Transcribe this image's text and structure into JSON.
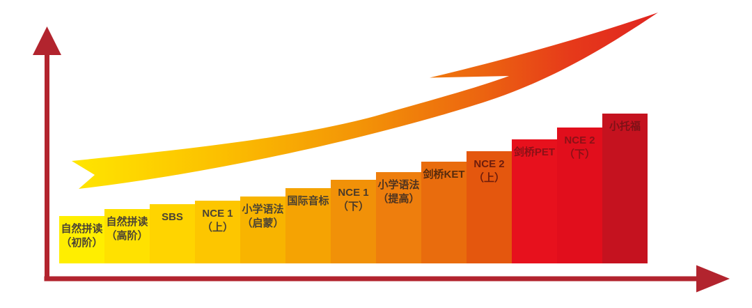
{
  "chart_data": {
    "type": "bar",
    "title": "",
    "xlabel": "",
    "ylabel": "",
    "legend": "none",
    "grid": false,
    "categories": [
      "自然拼读（初阶）",
      "自然拼读（高阶）",
      "SBS",
      "NCE 1（上）",
      "小学语法（启蒙）",
      "国际音标",
      "NCE 1（下）",
      "小学语法（提高）",
      "剑桥KET",
      "NCE 2（上）",
      "剑桥PET",
      "NCE 2（下）",
      "小托福"
    ],
    "values": [
      68,
      78,
      85,
      90,
      96,
      108,
      120,
      131,
      146,
      161,
      178,
      195,
      215
    ],
    "value_note": "no numeric axis in source; values are rendered bar heights (px), ascending ladder",
    "bars": [
      {
        "label": "自然拼读（初阶）",
        "lines": [
          "自然拼读",
          "（初阶）"
        ],
        "color": "#ffee00",
        "text_color": "#4b4334"
      },
      {
        "label": "自然拼读（高阶）",
        "lines": [
          "自然拼读",
          "（高阶）"
        ],
        "color": "#ffe100",
        "text_color": "#4b4334"
      },
      {
        "label": "SBS",
        "lines": [
          "SBS"
        ],
        "color": "#ffd400",
        "text_color": "#4b4334"
      },
      {
        "label": "NCE 1（上）",
        "lines": [
          "NCE 1",
          "（上）"
        ],
        "color": "#fdc600",
        "text_color": "#4b4334"
      },
      {
        "label": "小学语法（启蒙）",
        "lines": [
          "小学语法",
          "（启蒙）"
        ],
        "color": "#f8b400",
        "text_color": "#4b4334"
      },
      {
        "label": "国际音标",
        "lines": [
          "国际音标"
        ],
        "color": "#f5a303",
        "text_color": "#4b4030"
      },
      {
        "label": "NCE 1（下）",
        "lines": [
          "NCE 1",
          "（下）"
        ],
        "color": "#f19108",
        "text_color": "#4b3a28"
      },
      {
        "label": "小学语法（提高）",
        "lines": [
          "小学语法",
          "（提高）"
        ],
        "color": "#ee7e0d",
        "text_color": "#4d3320"
      },
      {
        "label": "剑桥KET",
        "lines": [
          "剑桥KET"
        ],
        "color": "#e96c0d",
        "text_color": "#572b0d"
      },
      {
        "label": "NCE 2（上）",
        "lines": [
          "NCE 2",
          "（上）"
        ],
        "color": "#e4570e",
        "text_color": "#6e1d0c"
      },
      {
        "label": "剑桥PET",
        "lines": [
          "剑桥PET"
        ],
        "color": "#e7111d",
        "text_color": "#8c1117"
      },
      {
        "label": "NCE 2（下）",
        "lines": [
          "NCE 2",
          "（下）"
        ],
        "color": "#e10e1c",
        "text_color": "#8c1117"
      },
      {
        "label": "小托福",
        "lines": [
          "小托福"
        ],
        "color": "#c5121f",
        "text_color": "#7d1117"
      }
    ],
    "axes": {
      "color": "#b2242e",
      "style": "L-shaped axes with arrowheads, no ticks, no tick labels"
    },
    "trend_arrow": {
      "shape": "upward curved swoosh with swallow tail (left) and barbed arrow tip (upper right)",
      "gradient_stops": [
        {
          "offset": "0%",
          "color": "#ffe600"
        },
        {
          "offset": "25%",
          "color": "#fcc000"
        },
        {
          "offset": "50%",
          "color": "#f39207"
        },
        {
          "offset": "70%",
          "color": "#ec6410"
        },
        {
          "offset": "85%",
          "color": "#e63a1a"
        },
        {
          "offset": "100%",
          "color": "#e02420"
        }
      ]
    }
  }
}
